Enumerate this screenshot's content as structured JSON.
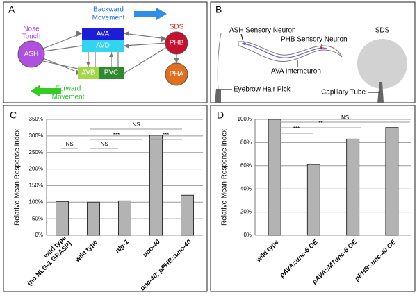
{
  "panel_a": {
    "label": "A",
    "backward_movement": [
      "Backward",
      "Movement"
    ],
    "forward_movement": [
      "Forward",
      "Movement"
    ],
    "nose_touch": [
      "Nose",
      "Touch"
    ],
    "sds": "SDS",
    "nodes": [
      "ASH",
      "AVA",
      "AVD",
      "AVB",
      "PVC",
      "PHB",
      "PHA"
    ]
  },
  "panel_b": {
    "label": "B",
    "ash": "ASH Sensory Neuron",
    "phb": "PHB Sensory Neuron",
    "sds": "SDS",
    "ava": "AVA Interneuron",
    "pick": "Eyebrow Hair Pick",
    "tube": "Capillary Tube"
  },
  "chart_data": [
    {
      "type": "bar",
      "panel_label": "C",
      "y_label": "Relative Mean Response Index",
      "categories": [
        "wild type\n(no NLG-1 GRASP)",
        "wild type",
        "nlg-1",
        "unc-40",
        "unc-40; pPHB::unc-40"
      ],
      "values": [
        102,
        100,
        104,
        302,
        121
      ],
      "color": "#b3b3b3",
      "ylim": [
        0,
        350
      ],
      "yticks": [
        {
          "value": 0,
          "label": "0%"
        },
        {
          "value": 50,
          "label": "50%"
        },
        {
          "value": 100,
          "label": "100%"
        },
        {
          "value": 150,
          "label": "150%"
        },
        {
          "value": 200,
          "label": "200%"
        },
        {
          "value": 250,
          "label": "250%"
        },
        {
          "value": 300,
          "label": "300%"
        },
        {
          "value": 350,
          "label": "350%"
        }
      ],
      "grid": true,
      "annotations": [
        "NS",
        "***",
        "***",
        "NS",
        "NS"
      ]
    },
    {
      "type": "bar",
      "panel_label": "D",
      "y_label": "Relative Mean Response Index",
      "categories": [
        "wild type",
        "pAVA::unc-6 OE",
        "pAVA::MTunc-6 OE",
        "pPHB::unc-40 OE"
      ],
      "values": [
        100,
        61,
        83,
        93
      ],
      "color": "#b3b3b3",
      "ylim": [
        0,
        100
      ],
      "yticks": [
        {
          "value": 0,
          "label": "0%"
        },
        {
          "value": 20,
          "label": "20%"
        },
        {
          "value": 40,
          "label": "40%"
        },
        {
          "value": 60,
          "label": "60%"
        },
        {
          "value": 80,
          "label": "80%"
        },
        {
          "value": 100,
          "label": "100%"
        }
      ],
      "grid": true,
      "annotations": [
        "NS",
        "**",
        "***"
      ]
    }
  ]
}
